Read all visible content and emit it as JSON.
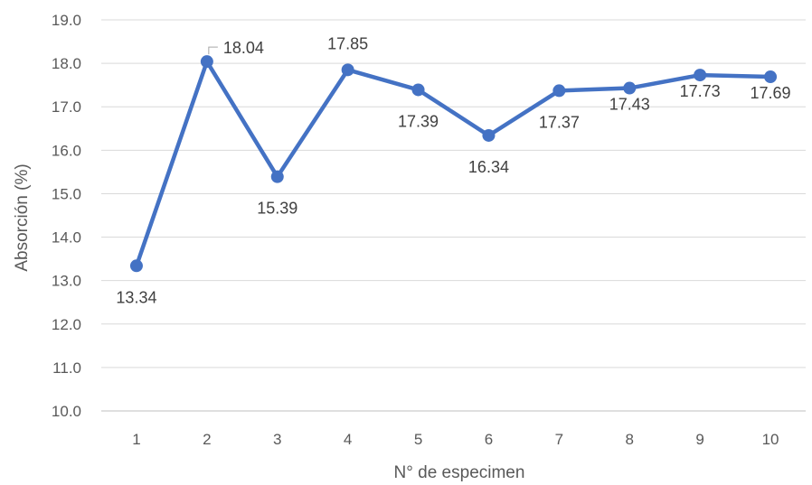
{
  "chart_data": {
    "type": "line",
    "title": "",
    "xlabel": "N° de especimen",
    "ylabel": "Absorción (%)",
    "categories": [
      "1",
      "2",
      "3",
      "4",
      "5",
      "6",
      "7",
      "8",
      "9",
      "10"
    ],
    "series": [
      {
        "values": [
          13.34,
          18.04,
          15.39,
          17.85,
          17.39,
          16.34,
          17.37,
          17.43,
          17.73,
          17.69
        ],
        "labels": [
          "13.34",
          "18.04",
          "15.39",
          "17.85",
          "17.39",
          "16.34",
          "17.37",
          "17.43",
          "17.73",
          "17.69"
        ],
        "color": "#4472C4"
      }
    ],
    "ylim": [
      10.0,
      19.0
    ],
    "yticks": [
      "10.0",
      "11.0",
      "12.0",
      "13.0",
      "14.0",
      "15.0",
      "16.0",
      "17.0",
      "18.0",
      "19.0"
    ],
    "grid": true,
    "legend": "none"
  }
}
